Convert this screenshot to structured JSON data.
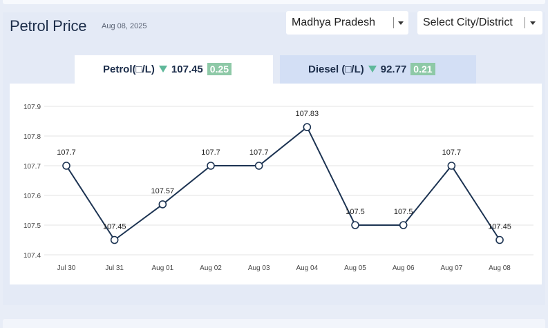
{
  "header": {
    "title": "Petrol Price",
    "date": "Aug 08, 2025"
  },
  "selectors": {
    "state": "Madhya Pradesh",
    "city": "Select City/District"
  },
  "tabs": {
    "petrol": {
      "label": "Petrol(□/L)",
      "price": "107.45",
      "change": "0.25",
      "active": true
    },
    "diesel": {
      "label": "Diesel (□/L)",
      "price": "92.77",
      "change": "0.21",
      "active": false
    }
  },
  "colors": {
    "line": "#1c3352",
    "down_arrow": "#5fb89a",
    "badge": "#8ec9a7"
  },
  "chart_data": {
    "type": "line",
    "x": [
      "Jul 30",
      "Jul 31",
      "Aug 01",
      "Aug 02",
      "Aug 03",
      "Aug 04",
      "Aug 05",
      "Aug 06",
      "Aug 07",
      "Aug 08"
    ],
    "series": [
      {
        "values": [
          107.7,
          107.45,
          107.57,
          107.7,
          107.7,
          107.83,
          107.5,
          107.5,
          107.7,
          107.45
        ],
        "labels": [
          "107.7",
          "107.45",
          "107.57",
          "107.7",
          "107.7",
          "107.83",
          "107.5",
          "107.5",
          "107.7",
          "107.45"
        ]
      }
    ],
    "yticks": [
      "107.4",
      "107.5",
      "107.6",
      "107.7",
      "107.8",
      "107.9"
    ],
    "ylim": [
      107.4,
      107.9
    ],
    "grid": true
  }
}
